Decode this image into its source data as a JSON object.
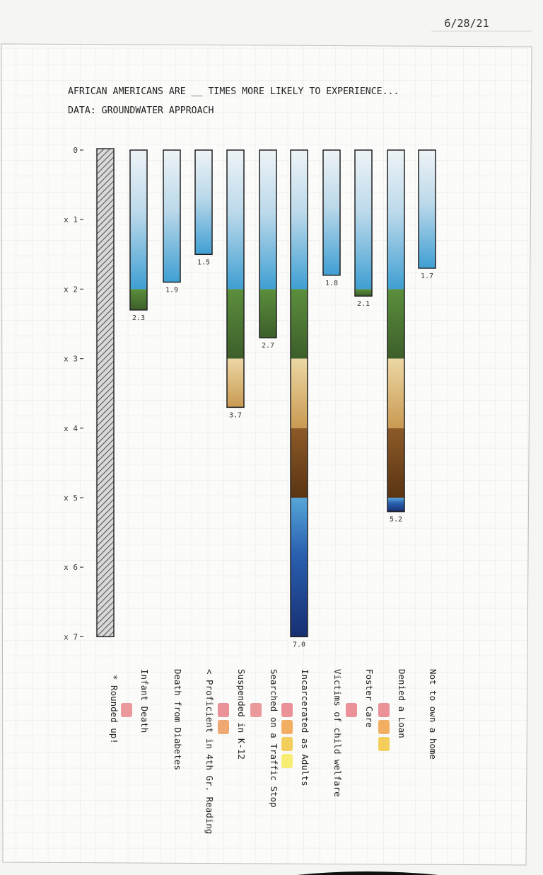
{
  "date": "6/28/21",
  "chart_data": {
    "type": "bar",
    "title": "AFRICAN AMERICANS ARE __ TIMES MORE LIKELY TO EXPERIENCE...",
    "subtitle": "DATA: GROUNDWATER APPROACH",
    "yticks": [
      "0",
      "x 1",
      "x 2",
      "x 3",
      "x 4",
      "x 5",
      "x 6",
      "x 7"
    ],
    "ylim": [
      0,
      7
    ],
    "reference_bar": {
      "value": 7.0,
      "label": "* Rounded up!"
    },
    "categories": [
      "Infant Death",
      "Death from Diabetes",
      "< Proficient in 4th Gr. Reading",
      "Suspended in K-12",
      "Searched on a Traffic Stop",
      "Incarcerated as Adults",
      "Victims of child welfare",
      "Foster Care",
      "Denied a Loan",
      "Not to own a home"
    ],
    "values": [
      2.3,
      1.9,
      1.5,
      3.7,
      2.7,
      7.0,
      1.8,
      2.1,
      5.2,
      1.7
    ],
    "value_labels": [
      "2.3",
      "1.9",
      "1.5",
      "3.7",
      "2.7",
      "7.0",
      "1.8",
      "2.1",
      "5.2",
      "1.7"
    ],
    "legend_dots": [
      [
        "#e8878a"
      ],
      [],
      [],
      [
        "#e87f86",
        "#ef9a5a"
      ],
      [
        "#e8878a"
      ],
      [
        "#e87f86",
        "#f0a048",
        "#f2c640",
        "#f6ea5a"
      ],
      [],
      [
        "#e87f86"
      ],
      [
        "#e87f86",
        "#f0a048",
        "#f2c640"
      ],
      []
    ],
    "colors": {
      "sky_light": "#dfeaf1",
      "sky": "#4fa6d4",
      "grass": "#4e7a36",
      "sand": "#e0c384",
      "soil": "#7a4a20",
      "water": "#1d3f8a",
      "reference": "#9a9a9a"
    }
  }
}
